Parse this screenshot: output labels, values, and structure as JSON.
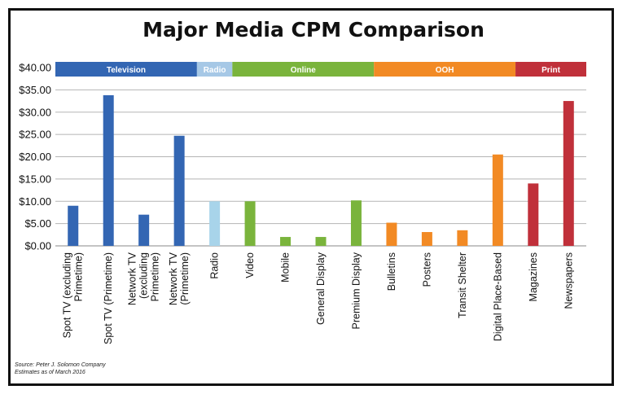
{
  "title": "Major Media CPM Comparison",
  "source": {
    "line1": "Source: Peter J. Solomon Company",
    "line2": "Estimates as of March 2016"
  },
  "chart_data": {
    "type": "bar",
    "title": "Major Media CPM Comparison",
    "xlabel": "",
    "ylabel": "",
    "ylim": [
      0,
      40
    ],
    "y_ticks": [
      "$0.00",
      "$5.00",
      "$10.00",
      "$15.00",
      "$20.00",
      "$25.00",
      "$30.00",
      "$35.00",
      "$40.00"
    ],
    "grid": true,
    "categories": [
      "Spot TV (excluding Primetime)",
      "Spot TV (Primetime)",
      "Network TV (excluding Primetime)",
      "Network TV (Primetime)",
      "Radio",
      "Video",
      "Mobile",
      "General Display",
      "Premium Display",
      "Bulletins",
      "Posters",
      "Transit Shelter",
      "Digital Place-Based",
      "Magazines",
      "Newspapers"
    ],
    "values": [
      9.0,
      33.8,
      7.0,
      24.7,
      10.0,
      10.0,
      2.0,
      2.0,
      10.2,
      5.2,
      3.1,
      3.5,
      20.5,
      14.0,
      32.5
    ],
    "bar_groups": [
      0,
      0,
      0,
      0,
      1,
      2,
      2,
      2,
      2,
      3,
      3,
      3,
      3,
      4,
      4
    ],
    "groups": [
      {
        "label": "Television",
        "color": "#3366b3"
      },
      {
        "label": "Radio",
        "color": "#a6c8e6"
      },
      {
        "label": "Online",
        "color": "#7ab43c"
      },
      {
        "label": "OOH",
        "color": "#f28a24"
      },
      {
        "label": "Print",
        "color": "#c0303a"
      }
    ],
    "bar_colors": {
      "Radio": "#a8d4ea"
    }
  }
}
